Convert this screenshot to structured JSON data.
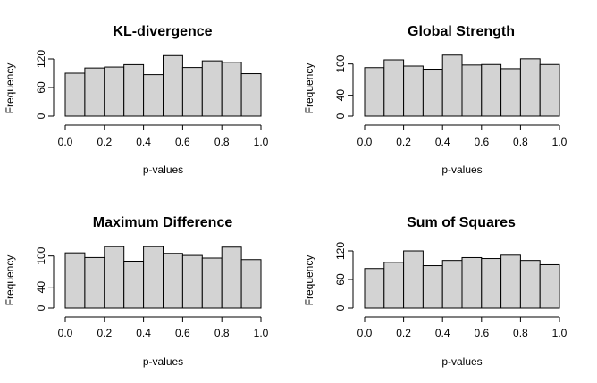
{
  "chart_data": [
    {
      "type": "bar",
      "title": "KL-divergence",
      "xlabel": "p-values",
      "ylabel": "Frequency",
      "bin_edges": [
        0.0,
        0.1,
        0.2,
        0.3,
        0.4,
        0.5,
        0.6,
        0.7,
        0.8,
        0.9,
        1.0
      ],
      "values": [
        90,
        101,
        103,
        108,
        87,
        127,
        102,
        116,
        113,
        89
      ],
      "xlim": [
        0.0,
        1.0
      ],
      "ylim": [
        0,
        140
      ],
      "xticks": [
        "0.0",
        "0.2",
        "0.4",
        "0.6",
        "0.8",
        "1.0"
      ],
      "yticks": [
        "0",
        "60",
        "120"
      ]
    },
    {
      "type": "bar",
      "title": "Global Strength",
      "xlabel": "p-values",
      "ylabel": "Frequency",
      "bin_edges": [
        0.0,
        0.1,
        0.2,
        0.3,
        0.4,
        0.5,
        0.6,
        0.7,
        0.8,
        0.9,
        1.0
      ],
      "values": [
        93,
        108,
        96,
        90,
        117,
        98,
        99,
        91,
        110,
        99
      ],
      "xlim": [
        0.0,
        1.0
      ],
      "ylim": [
        0,
        120
      ],
      "xticks": [
        "0.0",
        "0.2",
        "0.4",
        "0.6",
        "0.8",
        "1.0"
      ],
      "yticks": [
        "0",
        "40",
        "100"
      ]
    },
    {
      "type": "bar",
      "title": "Maximum Difference",
      "xlabel": "p-values",
      "ylabel": "Frequency",
      "bin_edges": [
        0.0,
        0.1,
        0.2,
        0.3,
        0.4,
        0.5,
        0.6,
        0.7,
        0.8,
        0.9,
        1.0
      ],
      "values": [
        106,
        97,
        118,
        90,
        118,
        105,
        101,
        96,
        117,
        93
      ],
      "xlim": [
        0.0,
        1.0
      ],
      "ylim": [
        0,
        120
      ],
      "xticks": [
        "0.0",
        "0.2",
        "0.4",
        "0.6",
        "0.8",
        "1.0"
      ],
      "yticks": [
        "0",
        "40",
        "100"
      ]
    },
    {
      "type": "bar",
      "title": "Sum of Squares",
      "xlabel": "p-values",
      "ylabel": "Frequency",
      "bin_edges": [
        0.0,
        0.1,
        0.2,
        0.3,
        0.4,
        0.5,
        0.6,
        0.7,
        0.8,
        0.9,
        1.0
      ],
      "values": [
        83,
        96,
        120,
        89,
        100,
        106,
        104,
        111,
        100,
        91
      ],
      "xlim": [
        0.0,
        1.0
      ],
      "ylim": [
        0,
        140
      ],
      "xticks": [
        "0.0",
        "0.2",
        "0.4",
        "0.6",
        "0.8",
        "1.0"
      ],
      "yticks": [
        "0",
        "60",
        "120"
      ]
    }
  ],
  "colors": {
    "bar_fill": "#d3d3d3",
    "bar_stroke": "#000000"
  }
}
